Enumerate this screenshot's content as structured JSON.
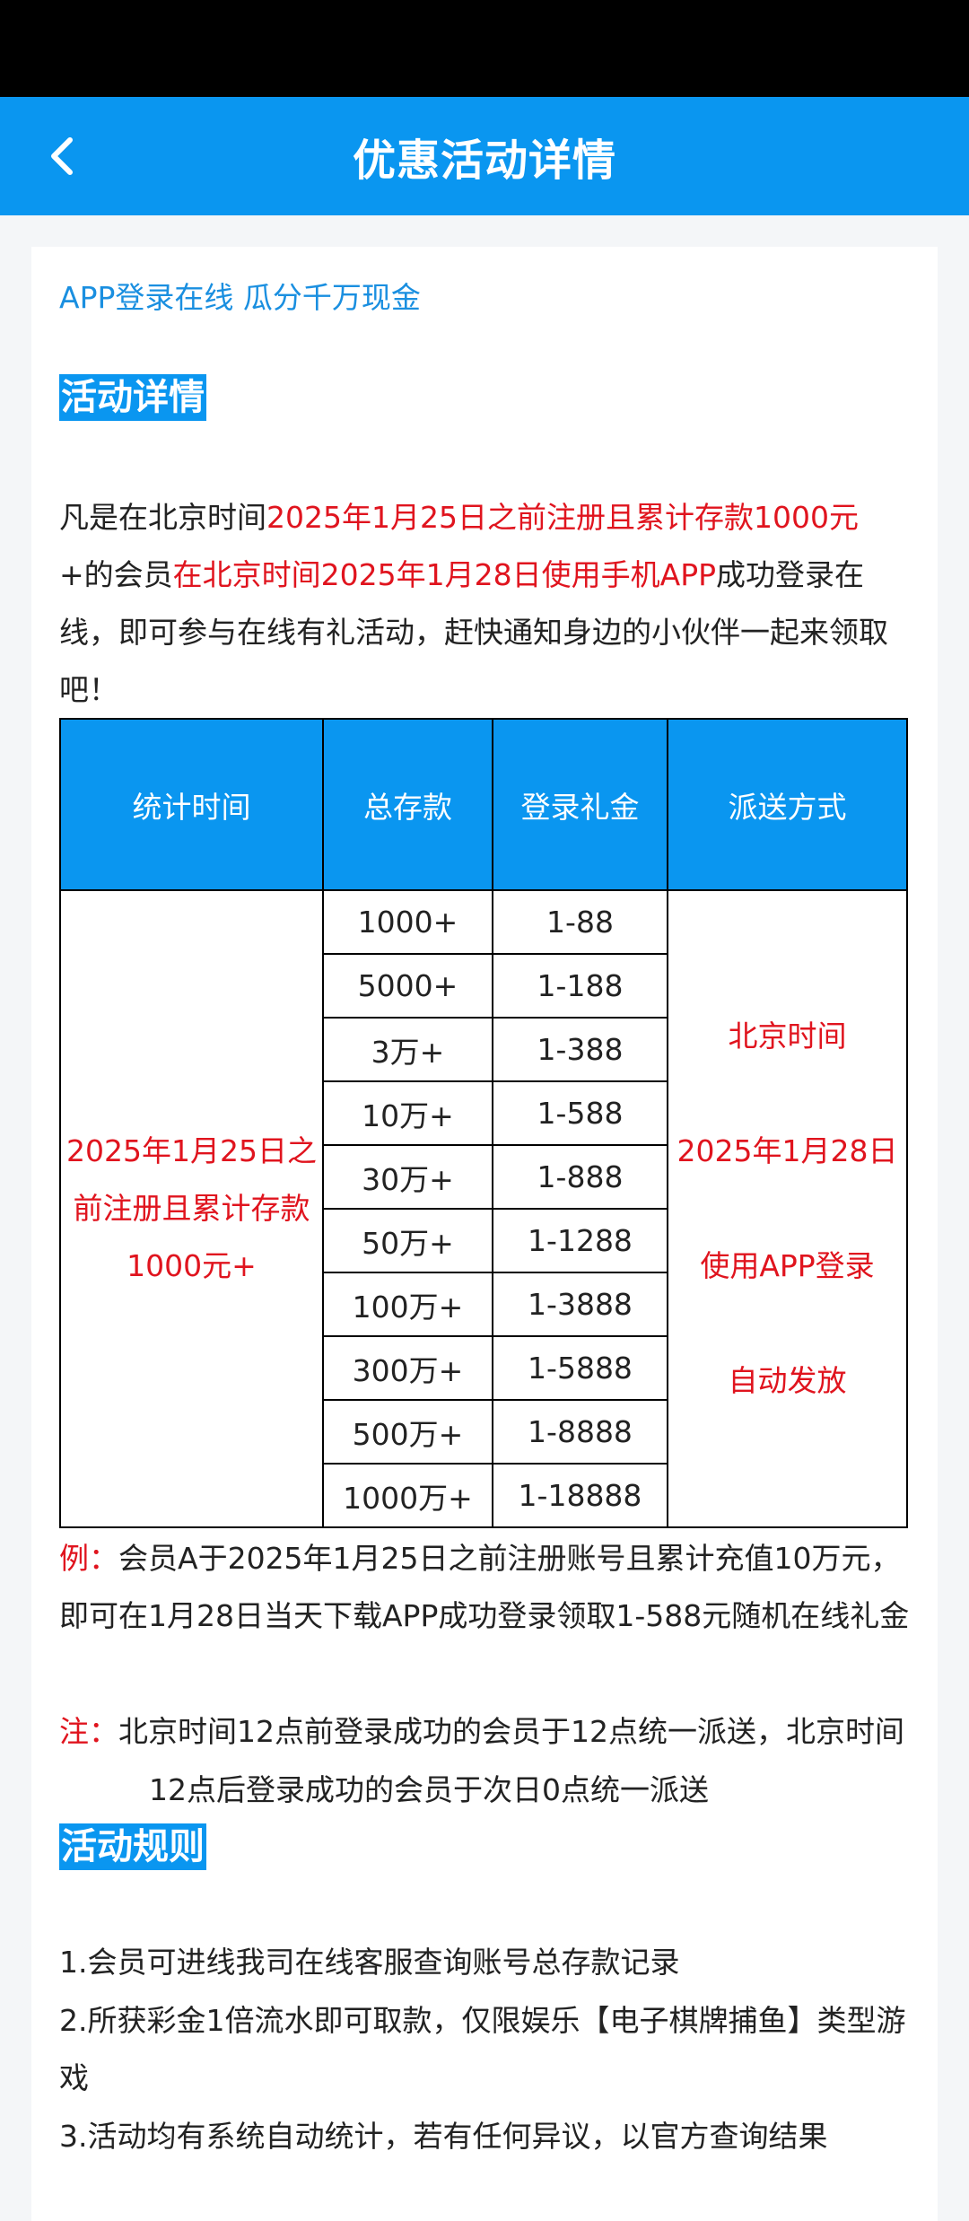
{
  "header": {
    "title": "优惠活动详情",
    "back_icon": "chevron-left-icon"
  },
  "subtitle": "APP登录在线 瓜分千万现金",
  "section1": "活动详情",
  "intro": {
    "p1": "凡是在北京时间",
    "r1": "2025年1月25日之前注册且累计存款1000元",
    "p2": "+的会员",
    "r2": "在北京时间2025年1月28日使用手机APP",
    "p3": "成功登录在线，即可参与在线有礼活动，赶快通知身边的小伙伴一起来领取吧！"
  },
  "table": {
    "headers": [
      "统计时间",
      "总存款",
      "登录礼金",
      "派送方式"
    ],
    "condition": "2025年1月25日之前注册且累计存款1000元+",
    "rows": [
      [
        "1000+",
        "1-88"
      ],
      [
        "5000+",
        "1-188"
      ],
      [
        "3万+",
        "1-388"
      ],
      [
        "10万+",
        "1-588"
      ],
      [
        "30万+",
        "1-888"
      ],
      [
        "50万+",
        "1-1288"
      ],
      [
        "100万+",
        "1-3888"
      ],
      [
        "300万+",
        "1-5888"
      ],
      [
        "500万+",
        "1-8888"
      ],
      [
        "1000万+",
        "1-18888"
      ]
    ],
    "delivery": [
      "北京时间",
      "2025年1月28日",
      "使用APP登录",
      "自动发放"
    ]
  },
  "example": {
    "label": "例：",
    "text": "会员A于2025年1月25日之前注册账号且累计充值10万元，即可在1月28日当天下载APP成功登录领取1-588元随机在线礼金"
  },
  "note": {
    "label": "注：",
    "text": "北京时间12点前登录成功的会员于12点统一派送，北京时间12点后登录成功的会员于次日0点统一派送"
  },
  "section2": "活动规则",
  "rules": [
    "1.会员可进线我司在线客服查询账号总存款记录",
    "2.所获彩金1倍流水即可取款，仅限娱乐【电子棋牌捕鱼】类型游戏",
    "3.活动均有系统自动统计，若有任何异议，以官方查询结果"
  ],
  "colors": {
    "primary": "#0a96f0",
    "accent_red": "#e0141e"
  }
}
